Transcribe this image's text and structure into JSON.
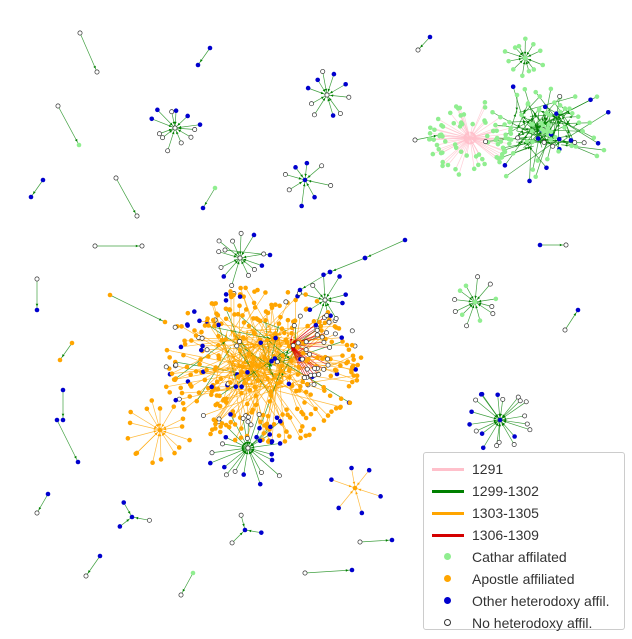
{
  "colors": {
    "period_1291": "#ffc0cb",
    "period_1299_1302": "#008000",
    "period_1303_1305": "#ffa500",
    "period_1306_1309": "#d40000",
    "cathar": "#90ee90",
    "apostle": "#ffa500",
    "other_heterodoxy": "#0000cd",
    "no_heterodoxy": "#ffffff"
  },
  "legend": {
    "edges": [
      {
        "label": "1291",
        "color": "#ffc0cb"
      },
      {
        "label": "1299-1302",
        "color": "#008000"
      },
      {
        "label": "1303-1305",
        "color": "#ffa500"
      },
      {
        "label": "1306-1309",
        "color": "#d40000"
      }
    ],
    "nodes": [
      {
        "label": "Cathar affilated",
        "color": "#90ee90",
        "icon": "filled-circle"
      },
      {
        "label": "Apostle affiliated",
        "color": "#ffa500",
        "icon": "filled-circle"
      },
      {
        "label": "Other heterodoxy affil.",
        "color": "#0000cd",
        "icon": "filled-circle"
      },
      {
        "label": "No heterodoxy affil.",
        "color": "#ffffff",
        "icon": "hollow-circle"
      }
    ]
  }
}
